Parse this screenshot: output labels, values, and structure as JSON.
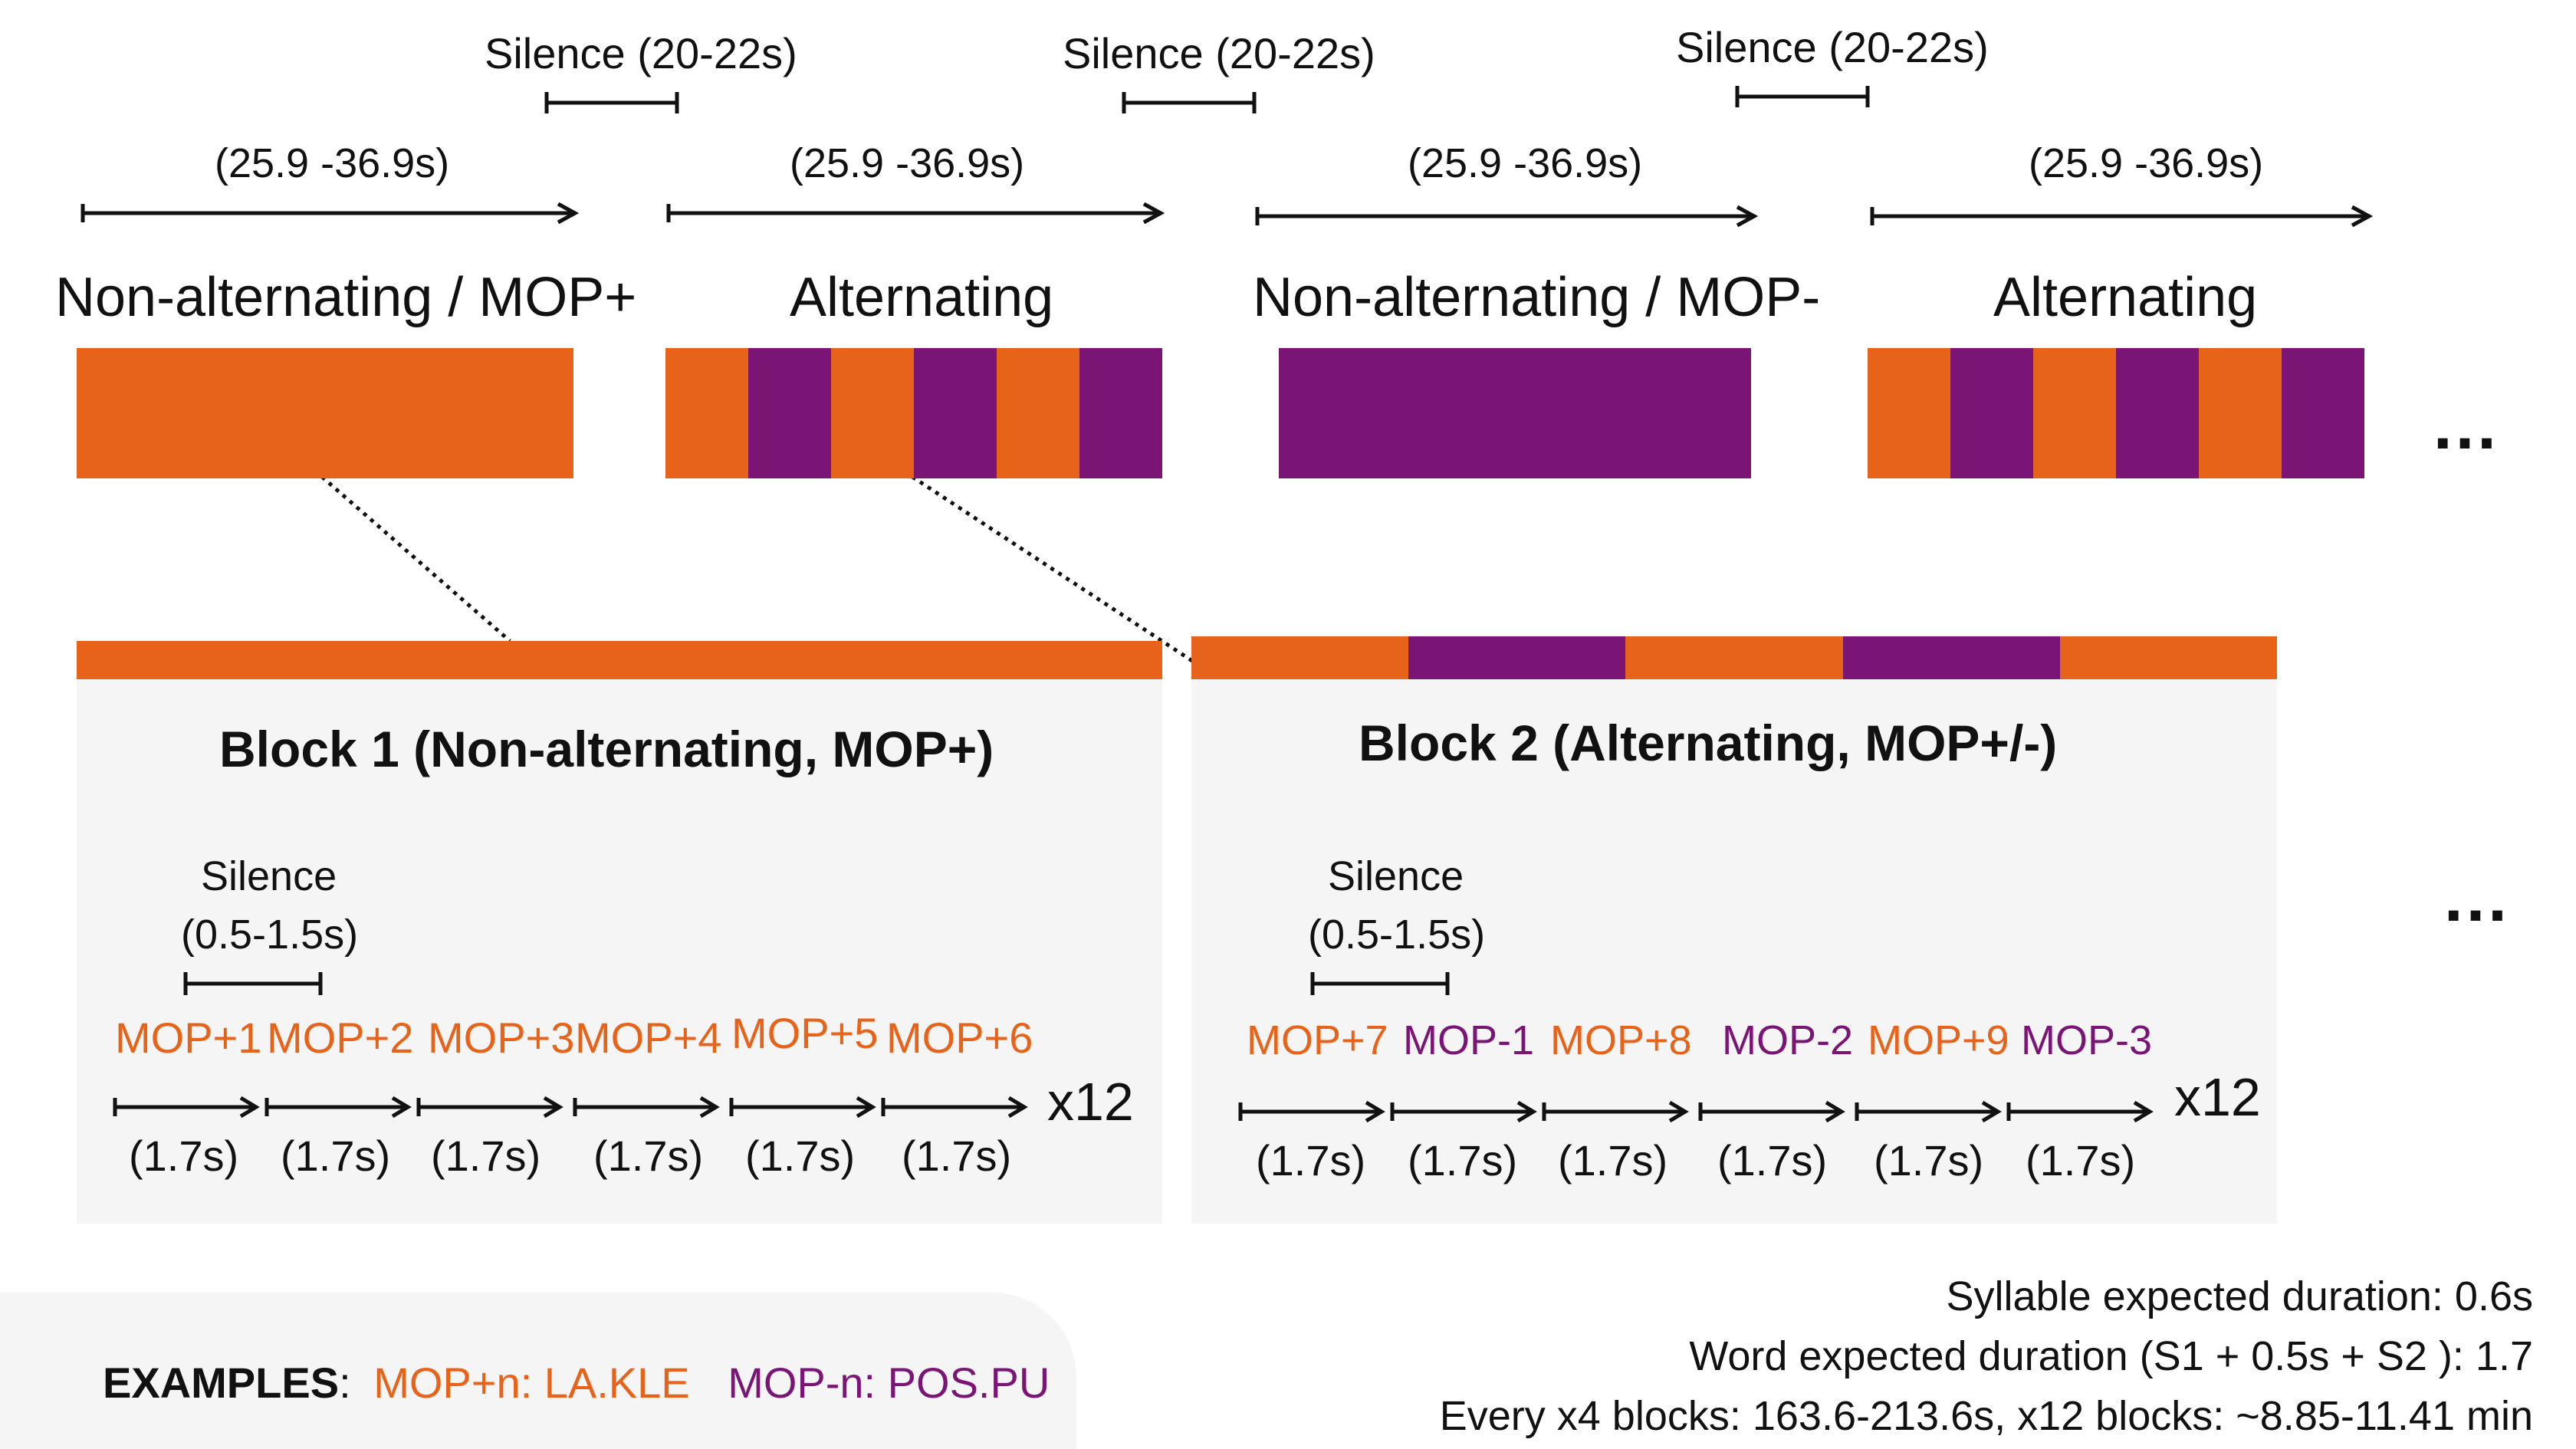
{
  "colors": {
    "orange": "#e8631a",
    "purple": "#7a1575",
    "panel": "#f5f5f5",
    "text": "#111111"
  },
  "timeline": {
    "silence_label": "Silence (20-22s)",
    "duration_label": "(25.9 -36.9s)",
    "blocks": [
      {
        "title": "Non-alternating / MOP+",
        "pattern": [
          "orange"
        ]
      },
      {
        "title": "Alternating",
        "pattern": [
          "orange",
          "purple",
          "orange",
          "purple",
          "orange",
          "purple"
        ]
      },
      {
        "title": "Non-alternating / MOP-",
        "pattern": [
          "purple"
        ]
      },
      {
        "title": "Alternating",
        "pattern": [
          "orange",
          "purple",
          "orange",
          "purple",
          "orange",
          "purple"
        ]
      }
    ],
    "ellipsis": "…"
  },
  "details": [
    {
      "title": "Block 1 (Non-alternating, MOP+)",
      "header_pattern": [
        "orange"
      ],
      "silence_label": "Silence",
      "silence_range": "(0.5-1.5s)",
      "items": [
        {
          "label": "MOP+1",
          "color": "orange"
        },
        {
          "label": "MOP+2",
          "color": "orange"
        },
        {
          "label": "MOP+3",
          "color": "orange"
        },
        {
          "label": "MOP+4",
          "color": "orange"
        },
        {
          "label": "MOP+5",
          "color": "orange"
        },
        {
          "label": "MOP+6",
          "color": "orange"
        }
      ],
      "item_duration": "(1.7s)",
      "repeat": "x12"
    },
    {
      "title": "Block 2 (Alternating, MOP+/-)",
      "header_pattern": [
        "orange",
        "purple",
        "orange",
        "purple",
        "orange"
      ],
      "silence_label": "Silence",
      "silence_range": "(0.5-1.5s)",
      "items": [
        {
          "label": "MOP+7",
          "color": "orange"
        },
        {
          "label": "MOP-1",
          "color": "purple"
        },
        {
          "label": "MOP+8",
          "color": "orange"
        },
        {
          "label": "MOP-2",
          "color": "purple"
        },
        {
          "label": "MOP+9",
          "color": "orange"
        },
        {
          "label": "MOP-3",
          "color": "purple"
        }
      ],
      "item_duration": "(1.7s)",
      "repeat": "x12"
    }
  ],
  "details_ellipsis": "…",
  "examples": {
    "heading": "EXAMPLES",
    "separator": ":",
    "mop_plus": "MOP+n: LA.KLE",
    "mop_minus": "MOP-n: POS.PU"
  },
  "notes": [
    "Syllable expected duration: 0.6s",
    "Word expected duration (S1 + 0.5s + S2 ): 1.7",
    "Every x4 blocks: 163.6-213.6s, x12 blocks: ~8.85-11.41 min"
  ]
}
